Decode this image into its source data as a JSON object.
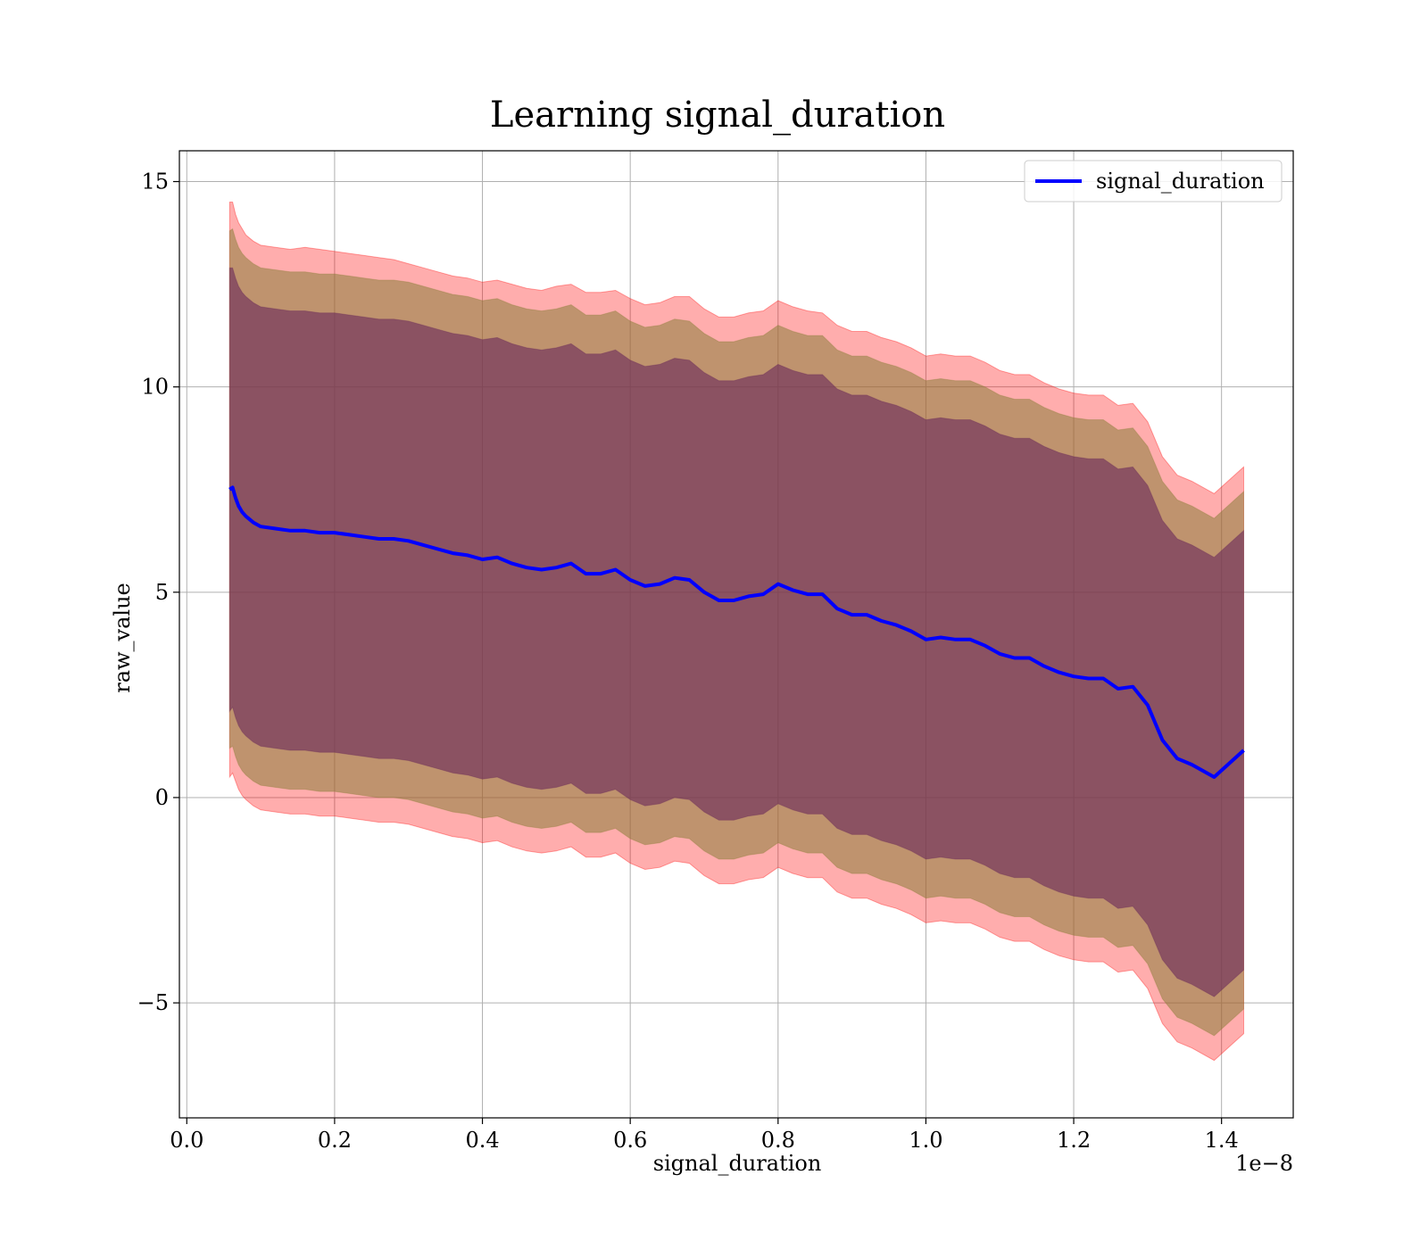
{
  "chart_data": {
    "type": "line",
    "title": "Learning signal_duration",
    "xlabel": "signal_duration",
    "ylabel": "raw_value",
    "x_offset_label": "1e−8",
    "xlim": [
      -0.01,
      1.497
    ],
    "ylim": [
      -7.8,
      15.75
    ],
    "x_ticks": [
      0.0,
      0.2,
      0.4,
      0.6,
      0.8,
      1.0,
      1.2,
      1.4
    ],
    "x_tick_labels": [
      "0.0",
      "0.2",
      "0.4",
      "0.6",
      "0.8",
      "1.0",
      "1.2",
      "1.4"
    ],
    "y_ticks": [
      -5,
      0,
      5,
      10,
      15
    ],
    "y_tick_labels": [
      "−5",
      "0",
      "5",
      "10",
      "15"
    ],
    "grid": true,
    "legend": {
      "position": "top-right",
      "entries": [
        "signal_duration"
      ]
    },
    "colors": {
      "line": "#0000ff",
      "band_outer": "#ff0000",
      "band_middle": "#8b7d3a",
      "band_inner": "#6b2a5a",
      "grid": "#b0b0b0"
    },
    "series": [
      {
        "name": "signal_duration",
        "x": [
          0.058,
          0.062,
          0.066,
          0.07,
          0.075,
          0.08,
          0.09,
          0.1,
          0.12,
          0.14,
          0.16,
          0.18,
          0.2,
          0.22,
          0.24,
          0.26,
          0.28,
          0.3,
          0.32,
          0.34,
          0.36,
          0.38,
          0.4,
          0.42,
          0.44,
          0.46,
          0.48,
          0.5,
          0.52,
          0.54,
          0.56,
          0.58,
          0.6,
          0.62,
          0.64,
          0.66,
          0.68,
          0.7,
          0.72,
          0.74,
          0.76,
          0.78,
          0.8,
          0.82,
          0.84,
          0.86,
          0.88,
          0.9,
          0.92,
          0.94,
          0.96,
          0.98,
          1.0,
          1.02,
          1.04,
          1.06,
          1.08,
          1.1,
          1.12,
          1.14,
          1.16,
          1.18,
          1.2,
          1.22,
          1.24,
          1.26,
          1.28,
          1.3,
          1.32,
          1.34,
          1.36,
          1.39,
          1.43
        ],
        "y": [
          7.5,
          7.55,
          7.3,
          7.1,
          6.95,
          6.85,
          6.7,
          6.6,
          6.55,
          6.5,
          6.5,
          6.45,
          6.45,
          6.4,
          6.35,
          6.3,
          6.3,
          6.25,
          6.15,
          6.05,
          5.95,
          5.9,
          5.8,
          5.85,
          5.7,
          5.6,
          5.55,
          5.6,
          5.7,
          5.45,
          5.45,
          5.55,
          5.3,
          5.15,
          5.2,
          5.35,
          5.3,
          5.0,
          4.8,
          4.8,
          4.9,
          4.95,
          5.2,
          5.05,
          4.95,
          4.95,
          4.6,
          4.45,
          4.45,
          4.3,
          4.2,
          4.05,
          3.85,
          3.9,
          3.85,
          3.85,
          3.7,
          3.5,
          3.4,
          3.4,
          3.2,
          3.05,
          2.95,
          2.9,
          2.9,
          2.65,
          2.7,
          2.25,
          1.4,
          0.95,
          0.8,
          0.5,
          1.15
        ]
      }
    ],
    "bands": [
      {
        "upper": [
          14.5,
          14.5,
          14.2,
          14.0,
          13.85,
          13.7,
          13.55,
          13.45,
          13.4,
          13.35,
          13.4,
          13.35,
          13.3,
          13.25,
          13.2,
          13.15,
          13.1,
          13.0,
          12.9,
          12.8,
          12.7,
          12.65,
          12.55,
          12.6,
          12.5,
          12.4,
          12.35,
          12.45,
          12.5,
          12.3,
          12.3,
          12.35,
          12.15,
          12.0,
          12.05,
          12.2,
          12.2,
          11.9,
          11.7,
          11.7,
          11.8,
          11.85,
          12.1,
          11.95,
          11.85,
          11.8,
          11.5,
          11.35,
          11.35,
          11.2,
          11.1,
          10.95,
          10.75,
          10.8,
          10.75,
          10.75,
          10.6,
          10.4,
          10.3,
          10.3,
          10.1,
          9.95,
          9.85,
          9.8,
          9.8,
          9.55,
          9.6,
          9.15,
          8.3,
          7.85,
          7.7,
          7.4,
          8.05
        ],
        "lower": [
          0.5,
          0.6,
          0.4,
          0.2,
          0.05,
          -0.05,
          -0.2,
          -0.3,
          -0.35,
          -0.4,
          -0.4,
          -0.45,
          -0.45,
          -0.5,
          -0.55,
          -0.6,
          -0.6,
          -0.65,
          -0.75,
          -0.85,
          -0.95,
          -1.0,
          -1.1,
          -1.05,
          -1.2,
          -1.3,
          -1.35,
          -1.3,
          -1.2,
          -1.45,
          -1.45,
          -1.35,
          -1.6,
          -1.75,
          -1.7,
          -1.55,
          -1.6,
          -1.9,
          -2.1,
          -2.1,
          -2.0,
          -1.95,
          -1.7,
          -1.85,
          -1.95,
          -1.95,
          -2.3,
          -2.45,
          -2.45,
          -2.6,
          -2.7,
          -2.85,
          -3.05,
          -3.0,
          -3.05,
          -3.05,
          -3.2,
          -3.4,
          -3.5,
          -3.5,
          -3.7,
          -3.85,
          -3.95,
          -4.0,
          -4.0,
          -4.25,
          -4.2,
          -4.65,
          -5.5,
          -5.95,
          -6.1,
          -6.4,
          -5.75
        ]
      },
      {
        "upper": [
          13.8,
          13.85,
          13.6,
          13.4,
          13.25,
          13.15,
          13.0,
          12.9,
          12.85,
          12.8,
          12.8,
          12.75,
          12.75,
          12.7,
          12.65,
          12.6,
          12.6,
          12.55,
          12.45,
          12.35,
          12.25,
          12.2,
          12.1,
          12.15,
          12.0,
          11.9,
          11.85,
          11.9,
          12.0,
          11.75,
          11.75,
          11.85,
          11.6,
          11.45,
          11.5,
          11.65,
          11.6,
          11.3,
          11.1,
          11.1,
          11.2,
          11.25,
          11.5,
          11.35,
          11.25,
          11.25,
          10.9,
          10.75,
          10.75,
          10.6,
          10.5,
          10.35,
          10.15,
          10.2,
          10.15,
          10.15,
          10.0,
          9.8,
          9.7,
          9.7,
          9.5,
          9.35,
          9.25,
          9.2,
          9.2,
          8.95,
          9.0,
          8.55,
          7.7,
          7.25,
          7.1,
          6.8,
          7.45
        ],
        "lower": [
          1.2,
          1.25,
          1.0,
          0.8,
          0.65,
          0.55,
          0.4,
          0.3,
          0.25,
          0.2,
          0.2,
          0.15,
          0.15,
          0.1,
          0.05,
          0.0,
          0.0,
          -0.05,
          -0.15,
          -0.25,
          -0.35,
          -0.4,
          -0.5,
          -0.45,
          -0.6,
          -0.7,
          -0.75,
          -0.7,
          -0.6,
          -0.85,
          -0.85,
          -0.75,
          -1.0,
          -1.15,
          -1.1,
          -0.95,
          -1.0,
          -1.3,
          -1.5,
          -1.5,
          -1.4,
          -1.35,
          -1.1,
          -1.25,
          -1.35,
          -1.35,
          -1.7,
          -1.85,
          -1.85,
          -2.0,
          -2.1,
          -2.25,
          -2.45,
          -2.4,
          -2.45,
          -2.45,
          -2.6,
          -2.8,
          -2.9,
          -2.9,
          -3.1,
          -3.25,
          -3.35,
          -3.4,
          -3.4,
          -3.65,
          -3.6,
          -4.05,
          -4.9,
          -5.35,
          -5.5,
          -5.8,
          -5.15
        ]
      },
      {
        "upper": [
          12.9,
          12.9,
          12.65,
          12.45,
          12.3,
          12.2,
          12.05,
          11.95,
          11.9,
          11.85,
          11.85,
          11.8,
          11.8,
          11.75,
          11.7,
          11.65,
          11.65,
          11.6,
          11.5,
          11.4,
          11.3,
          11.25,
          11.15,
          11.2,
          11.05,
          10.95,
          10.9,
          10.95,
          11.05,
          10.8,
          10.8,
          10.9,
          10.65,
          10.5,
          10.55,
          10.7,
          10.65,
          10.35,
          10.15,
          10.15,
          10.25,
          10.3,
          10.55,
          10.4,
          10.3,
          10.3,
          9.95,
          9.8,
          9.8,
          9.65,
          9.55,
          9.4,
          9.2,
          9.25,
          9.2,
          9.2,
          9.05,
          8.85,
          8.75,
          8.75,
          8.55,
          8.4,
          8.3,
          8.25,
          8.25,
          8.0,
          8.05,
          7.6,
          6.75,
          6.3,
          6.15,
          5.85,
          6.5
        ],
        "lower": [
          2.1,
          2.2,
          1.95,
          1.75,
          1.6,
          1.5,
          1.35,
          1.25,
          1.2,
          1.15,
          1.15,
          1.1,
          1.1,
          1.05,
          1.0,
          0.95,
          0.95,
          0.9,
          0.8,
          0.7,
          0.6,
          0.55,
          0.45,
          0.5,
          0.35,
          0.25,
          0.2,
          0.25,
          0.35,
          0.1,
          0.1,
          0.2,
          -0.05,
          -0.2,
          -0.15,
          0.0,
          -0.05,
          -0.35,
          -0.55,
          -0.55,
          -0.45,
          -0.4,
          -0.15,
          -0.3,
          -0.4,
          -0.4,
          -0.75,
          -0.9,
          -0.9,
          -1.05,
          -1.15,
          -1.3,
          -1.5,
          -1.45,
          -1.5,
          -1.5,
          -1.65,
          -1.85,
          -1.95,
          -1.95,
          -2.15,
          -2.3,
          -2.4,
          -2.45,
          -2.45,
          -2.7,
          -2.65,
          -3.1,
          -3.95,
          -4.4,
          -4.55,
          -4.85,
          -4.2
        ]
      }
    ]
  }
}
